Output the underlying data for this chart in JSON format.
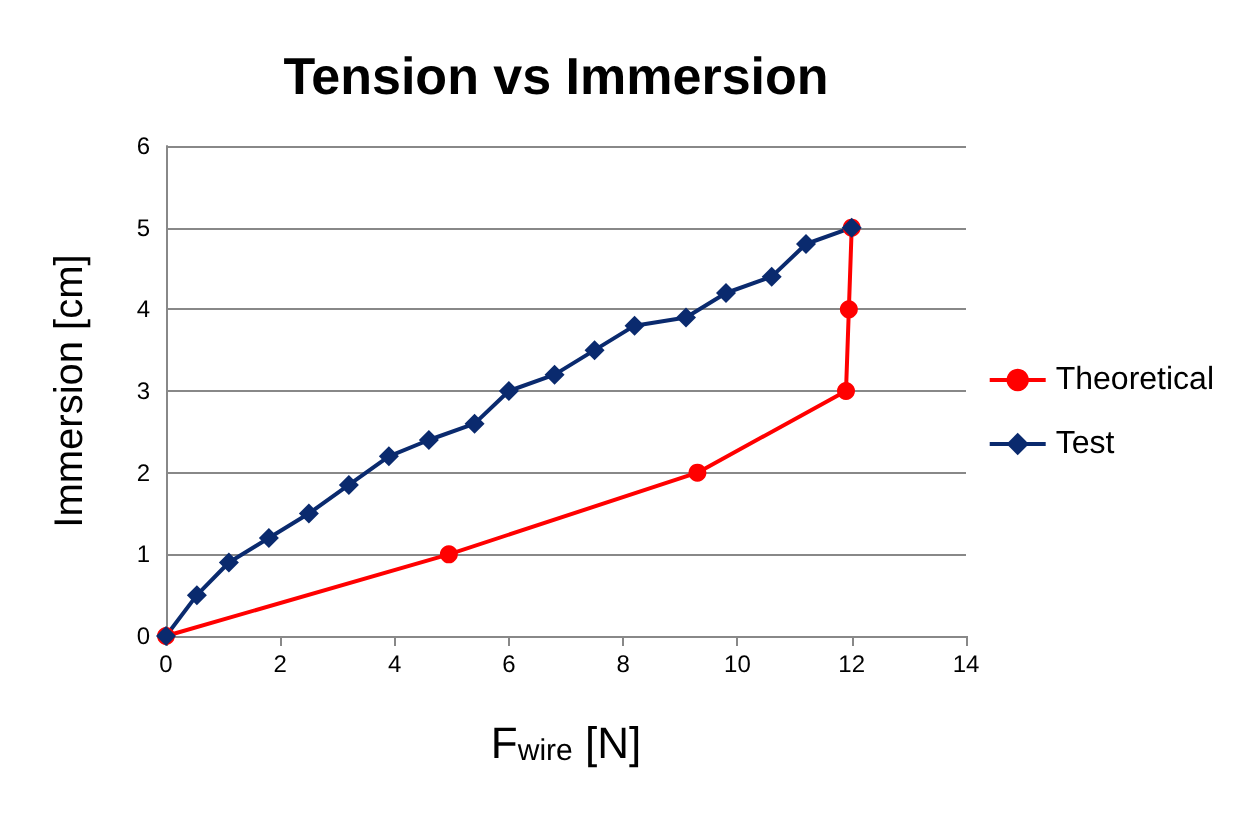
{
  "chart_data": {
    "type": "line",
    "title": "Tension vs Immersion",
    "xlabel": "F$_{wire}$ [N]",
    "ylabel": "Immersion [cm]",
    "xlim": [
      0,
      14
    ],
    "xticks": [
      0,
      2,
      4,
      6,
      8,
      10,
      12,
      14
    ],
    "ylim": [
      0,
      6
    ],
    "yticks": [
      0,
      1,
      2,
      3,
      4,
      5,
      6
    ],
    "grid": "y",
    "legend": "right",
    "series": [
      {
        "name": "Theoretical",
        "color": "#ff0000",
        "marker": "circle",
        "x": [
          0,
          4.95,
          9.3,
          11.9,
          11.95,
          12
        ],
        "values": [
          0,
          1,
          2,
          3,
          4,
          5
        ]
      },
      {
        "name": "Test",
        "color": "#0a2a6e",
        "marker": "diamond",
        "x": [
          0,
          0.54,
          1.1,
          1.8,
          2.5,
          3.2,
          3.9,
          4.6,
          5.4,
          6.0,
          6.8,
          7.5,
          8.2,
          9.1,
          9.8,
          10.6,
          11.2,
          12.0
        ],
        "values": [
          0,
          0.5,
          0.9,
          1.2,
          1.5,
          1.85,
          2.2,
          2.4,
          2.6,
          3.0,
          3.2,
          3.5,
          3.8,
          3.9,
          4.2,
          4.4,
          4.8,
          5.0
        ]
      }
    ]
  }
}
